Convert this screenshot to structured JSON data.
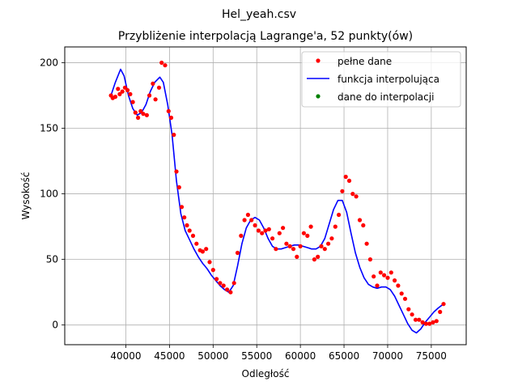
{
  "figure": {
    "suptitle": "Hel_yeah.csv",
    "title": "Przybliżenie interpolacją Lagrange'a, 52 punkty(ów)"
  },
  "chart_data": {
    "type": "line",
    "title": "Przybliżenie interpolacją Lagrange'a, 52 punkty(ów)",
    "xlabel": "Odległość",
    "ylabel": "Wysokość",
    "xlim": [
      33000,
      79000
    ],
    "ylim": [
      -15,
      212
    ],
    "grid": true,
    "legend_position": "top-right",
    "xticks": [
      40000,
      45000,
      50000,
      55000,
      60000,
      65000,
      70000,
      75000
    ],
    "yticks": [
      0,
      50,
      100,
      150,
      200
    ],
    "series": [
      {
        "name": "pełne dane",
        "kind": "scatter",
        "color": "#ff0000",
        "x": [
          38300,
          38500,
          38800,
          39100,
          39300,
          39600,
          39900,
          40200,
          40500,
          40800,
          41100,
          41400,
          41700,
          42000,
          42400,
          42700,
          43100,
          43400,
          43800,
          44100,
          44500,
          44900,
          45200,
          45500,
          45800,
          46100,
          46400,
          46700,
          47000,
          47300,
          47700,
          48100,
          48500,
          48800,
          49200,
          49600,
          50000,
          50400,
          50800,
          51200,
          51600,
          52000,
          52400,
          52800,
          53200,
          53600,
          54000,
          54400,
          54800,
          55200,
          55600,
          56000,
          56400,
          56800,
          57200,
          57600,
          58000,
          58400,
          58800,
          59200,
          59600,
          60000,
          60400,
          60800,
          61200,
          61600,
          62000,
          62400,
          62800,
          63200,
          63600,
          64000,
          64400,
          64800,
          65200,
          65600,
          66000,
          66400,
          66800,
          67200,
          67600,
          68000,
          68400,
          68800,
          69200,
          69600,
          70000,
          70400,
          70800,
          71200,
          71600,
          72000,
          72400,
          72800,
          73200,
          73600,
          74000,
          74400,
          74800,
          75200,
          75600,
          76000,
          76400
        ],
        "y": [
          175,
          173,
          174,
          180,
          176,
          178,
          181,
          179,
          176,
          170,
          162,
          158,
          163,
          161,
          160,
          175,
          184,
          172,
          181,
          200,
          198,
          163,
          158,
          145,
          117,
          105,
          90,
          82,
          76,
          72,
          68,
          62,
          57,
          56,
          58,
          48,
          42,
          35,
          32,
          30,
          27,
          25,
          32,
          55,
          68,
          80,
          84,
          80,
          76,
          72,
          70,
          72,
          73,
          66,
          58,
          70,
          74,
          62,
          60,
          58,
          52,
          60,
          70,
          68,
          75,
          50,
          52,
          60,
          58,
          62,
          66,
          75,
          84,
          102,
          113,
          110,
          100,
          98,
          80,
          76,
          62,
          50,
          37,
          30,
          40,
          38,
          36,
          40,
          34,
          30,
          24,
          20,
          12,
          8,
          4,
          4,
          2,
          1,
          1,
          2,
          3,
          10,
          16
        ],
        "x2": [],
        "y2": []
      },
      {
        "name": "funkcja interpolująca",
        "kind": "line",
        "color": "#0000ff",
        "x": [
          38300,
          38800,
          39400,
          39800,
          40300,
          40800,
          41300,
          41800,
          42300,
          42800,
          43300,
          43900,
          44300,
          44800,
          45300,
          45800,
          46300,
          46800,
          47300,
          47800,
          48300,
          48800,
          49300,
          49800,
          50300,
          50800,
          51300,
          51800,
          52300,
          52800,
          53300,
          53800,
          54300,
          54800,
          55300,
          55800,
          56300,
          56800,
          57300,
          57800,
          58300,
          58800,
          59300,
          59800,
          60300,
          60800,
          61300,
          61800,
          62300,
          62800,
          63300,
          63800,
          64300,
          64800,
          65300,
          65800,
          66300,
          66800,
          67300,
          67800,
          68300,
          68800,
          69300,
          69800,
          70300,
          70800,
          71300,
          71800,
          72300,
          72800,
          73300,
          73800,
          74300,
          74800,
          75300,
          75800,
          76400
        ],
        "y": [
          175,
          185,
          195,
          190,
          175,
          165,
          160,
          162,
          168,
          178,
          185,
          189,
          185,
          168,
          145,
          110,
          85,
          72,
          65,
          58,
          52,
          47,
          43,
          38,
          34,
          30,
          27,
          25,
          30,
          45,
          62,
          74,
          80,
          82,
          80,
          74,
          66,
          60,
          58,
          58,
          59,
          60,
          61,
          61,
          60,
          59,
          58,
          58,
          60,
          66,
          77,
          88,
          95,
          95,
          86,
          70,
          55,
          44,
          36,
          31,
          29,
          28,
          29,
          29,
          27,
          22,
          15,
          8,
          1,
          -4,
          -6,
          -3,
          2,
          6,
          10,
          13,
          16
        ]
      },
      {
        "name": "dane do interpolacji",
        "kind": "scatter",
        "color": "#008000",
        "x": [],
        "y": []
      }
    ]
  }
}
